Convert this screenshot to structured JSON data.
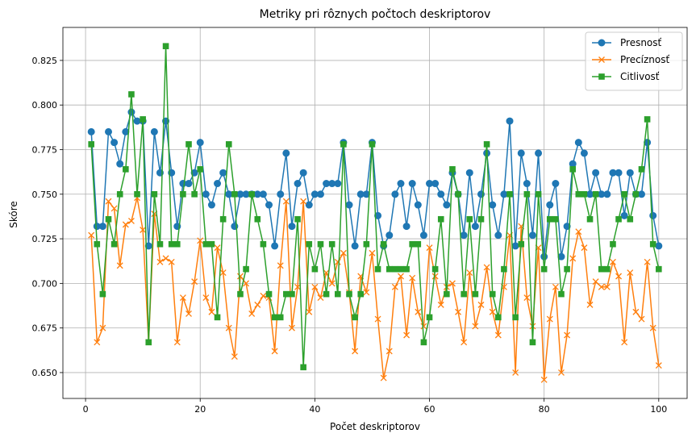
{
  "chart_data": {
    "type": "line",
    "title": "Metriky pri rôznych počtoch deskriptorov",
    "xlabel": "Počet deskriptorov",
    "ylabel": "Skóre",
    "xlim": [
      -3.95,
      104.95
    ],
    "ylim": [
      0.6355,
      0.8435
    ],
    "xticks": [
      0,
      20,
      40,
      60,
      80,
      100
    ],
    "yticks": [
      0.65,
      0.675,
      0.7,
      0.725,
      0.75,
      0.775,
      0.8,
      0.825
    ],
    "ytick_labels": [
      "0.650",
      "0.675",
      "0.700",
      "0.725",
      "0.750",
      "0.775",
      "0.800",
      "0.825"
    ],
    "grid": true,
    "legend_position": "top-right",
    "x": [
      1,
      2,
      3,
      4,
      5,
      6,
      7,
      8,
      9,
      10,
      11,
      12,
      13,
      14,
      15,
      16,
      17,
      18,
      19,
      20,
      21,
      22,
      23,
      24,
      25,
      26,
      27,
      28,
      29,
      30,
      31,
      32,
      33,
      34,
      35,
      36,
      37,
      38,
      39,
      40,
      41,
      42,
      43,
      44,
      45,
      46,
      47,
      48,
      49,
      50,
      51,
      52,
      53,
      54,
      55,
      56,
      57,
      58,
      59,
      60,
      61,
      62,
      63,
      64,
      65,
      66,
      67,
      68,
      69,
      70,
      71,
      72,
      73,
      74,
      75,
      76,
      77,
      78,
      79,
      80,
      81,
      82,
      83,
      84,
      85,
      86,
      87,
      88,
      89,
      90,
      91,
      92,
      93,
      94,
      95,
      96,
      97,
      98,
      99,
      100
    ],
    "series": [
      {
        "name": "Presnosť",
        "color": "#1f77b4",
        "marker": "circle",
        "values": [
          0.785,
          0.732,
          0.732,
          0.785,
          0.779,
          0.767,
          0.785,
          0.796,
          0.791,
          0.791,
          0.721,
          0.785,
          0.762,
          0.791,
          0.762,
          0.732,
          0.756,
          0.756,
          0.762,
          0.779,
          0.75,
          0.744,
          0.756,
          0.762,
          0.75,
          0.732,
          0.75,
          0.75,
          0.75,
          0.75,
          0.75,
          0.744,
          0.721,
          0.75,
          0.773,
          0.732,
          0.756,
          0.762,
          0.744,
          0.75,
          0.75,
          0.756,
          0.756,
          0.756,
          0.779,
          0.744,
          0.721,
          0.75,
          0.75,
          0.779,
          0.738,
          0.721,
          0.727,
          0.75,
          0.756,
          0.732,
          0.756,
          0.744,
          0.727,
          0.756,
          0.756,
          0.75,
          0.744,
          0.762,
          0.75,
          0.727,
          0.762,
          0.732,
          0.75,
          0.773,
          0.744,
          0.727,
          0.75,
          0.791,
          0.721,
          0.773,
          0.756,
          0.727,
          0.773,
          0.715,
          0.744,
          0.756,
          0.715,
          0.732,
          0.767,
          0.779,
          0.773,
          0.75,
          0.762,
          0.75,
          0.75,
          0.762,
          0.762,
          0.738,
          0.762,
          0.75,
          0.75,
          0.779,
          0.738,
          0.721
        ]
      },
      {
        "name": "Precíznosť",
        "color": "#ff7f0e",
        "marker": "x",
        "values": [
          0.727,
          0.667,
          0.675,
          0.746,
          0.742,
          0.71,
          0.733,
          0.735,
          0.748,
          0.73,
          0.667,
          0.739,
          0.712,
          0.714,
          0.712,
          0.667,
          0.692,
          0.683,
          0.701,
          0.724,
          0.692,
          0.684,
          0.72,
          0.706,
          0.675,
          0.659,
          0.704,
          0.7,
          0.683,
          0.688,
          0.693,
          0.692,
          0.662,
          0.71,
          0.746,
          0.675,
          0.698,
          0.746,
          0.684,
          0.698,
          0.692,
          0.706,
          0.7,
          0.712,
          0.717,
          0.695,
          0.662,
          0.704,
          0.695,
          0.717,
          0.68,
          0.647,
          0.662,
          0.698,
          0.704,
          0.671,
          0.703,
          0.684,
          0.676,
          0.72,
          0.704,
          0.688,
          0.698,
          0.7,
          0.684,
          0.667,
          0.706,
          0.676,
          0.688,
          0.709,
          0.684,
          0.671,
          0.698,
          0.727,
          0.65,
          0.732,
          0.692,
          0.676,
          0.72,
          0.646,
          0.68,
          0.698,
          0.65,
          0.671,
          0.714,
          0.729,
          0.72,
          0.688,
          0.701,
          0.698,
          0.698,
          0.712,
          0.704,
          0.667,
          0.706,
          0.684,
          0.68,
          0.712,
          0.675,
          0.654
        ]
      },
      {
        "name": "Citlivosť",
        "color": "#2ca02c",
        "marker": "square",
        "values": [
          0.778,
          0.722,
          0.694,
          0.736,
          0.722,
          0.75,
          0.764,
          0.806,
          0.75,
          0.792,
          0.667,
          0.75,
          0.722,
          0.833,
          0.722,
          0.722,
          0.75,
          0.778,
          0.75,
          0.764,
          0.722,
          0.722,
          0.681,
          0.736,
          0.778,
          0.75,
          0.694,
          0.708,
          0.75,
          0.736,
          0.722,
          0.694,
          0.681,
          0.681,
          0.694,
          0.694,
          0.736,
          0.653,
          0.722,
          0.708,
          0.722,
          0.694,
          0.722,
          0.694,
          0.778,
          0.694,
          0.681,
          0.694,
          0.722,
          0.778,
          0.708,
          0.722,
          0.708,
          0.708,
          0.708,
          0.708,
          0.722,
          0.722,
          0.667,
          0.681,
          0.708,
          0.736,
          0.694,
          0.764,
          0.75,
          0.694,
          0.736,
          0.694,
          0.736,
          0.778,
          0.694,
          0.681,
          0.708,
          0.75,
          0.681,
          0.722,
          0.75,
          0.667,
          0.75,
          0.708,
          0.736,
          0.736,
          0.694,
          0.708,
          0.764,
          0.75,
          0.75,
          0.736,
          0.75,
          0.708,
          0.708,
          0.722,
          0.736,
          0.75,
          0.736,
          0.75,
          0.764,
          0.792,
          0.722,
          0.708
        ]
      }
    ]
  }
}
